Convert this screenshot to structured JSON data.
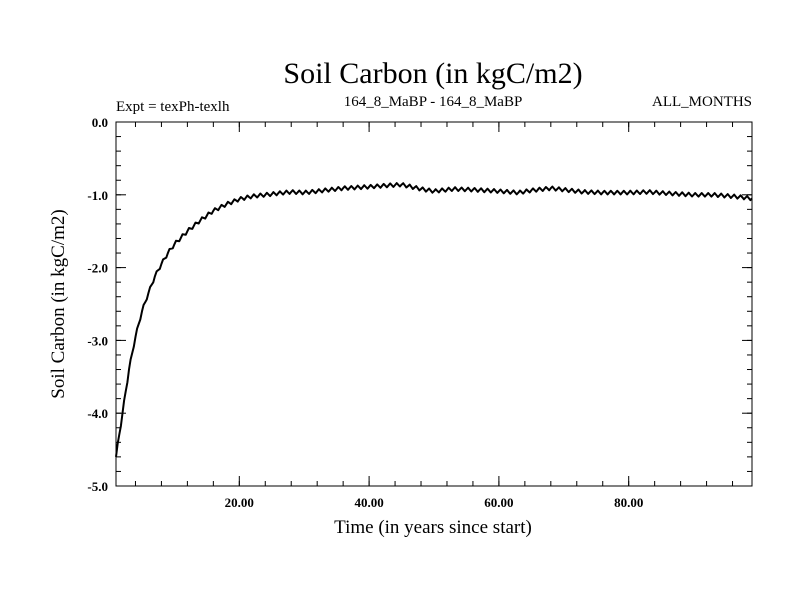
{
  "chart_data": {
    "type": "line",
    "title": "Soil Carbon (in kgC/m2)",
    "subtitle_left": "Expt = texPh-texlh",
    "subtitle_center": "164_8_MaBP - 164_8_MaBP",
    "subtitle_right": "ALL_MONTHS",
    "xlabel": "Time (in years since start)",
    "ylabel": "Soil Carbon (in kgC/m2)",
    "xlim": [
      1,
      99
    ],
    "ylim": [
      -5.0,
      0.0
    ],
    "x_ticks": [
      20,
      40,
      60,
      80
    ],
    "x_tick_labels": [
      "20.00",
      "40.00",
      "60.00",
      "80.00"
    ],
    "y_ticks": [
      0.0,
      -1.0,
      -2.0,
      -3.0,
      -4.0,
      -5.0
    ],
    "y_tick_labels": [
      "0.0",
      "-1.0",
      "-2.0",
      "-3.0",
      "-4.0",
      "-5.0"
    ],
    "grid": false,
    "series": [
      {
        "name": "Soil Carbon",
        "x": [
          1,
          2,
          3,
          4,
          5,
          6,
          7,
          8,
          9,
          10,
          12,
          14,
          16,
          18,
          20,
          22,
          25,
          28,
          30,
          33,
          36,
          40,
          43,
          45,
          48,
          50,
          53,
          56,
          60,
          63,
          65,
          68,
          70,
          73,
          76,
          80,
          83,
          86,
          90,
          93,
          96,
          99
        ],
        "values": [
          -4.6,
          -4.0,
          -3.4,
          -2.95,
          -2.6,
          -2.35,
          -2.12,
          -1.95,
          -1.8,
          -1.68,
          -1.5,
          -1.35,
          -1.22,
          -1.13,
          -1.06,
          -1.02,
          -0.99,
          -0.96,
          -0.97,
          -0.94,
          -0.91,
          -0.89,
          -0.87,
          -0.86,
          -0.92,
          -0.95,
          -0.92,
          -0.93,
          -0.95,
          -0.97,
          -0.94,
          -0.91,
          -0.93,
          -0.96,
          -0.97,
          -0.97,
          -0.96,
          -0.98,
          -1.0,
          -1.0,
          -1.02,
          -1.05
        ]
      }
    ]
  }
}
